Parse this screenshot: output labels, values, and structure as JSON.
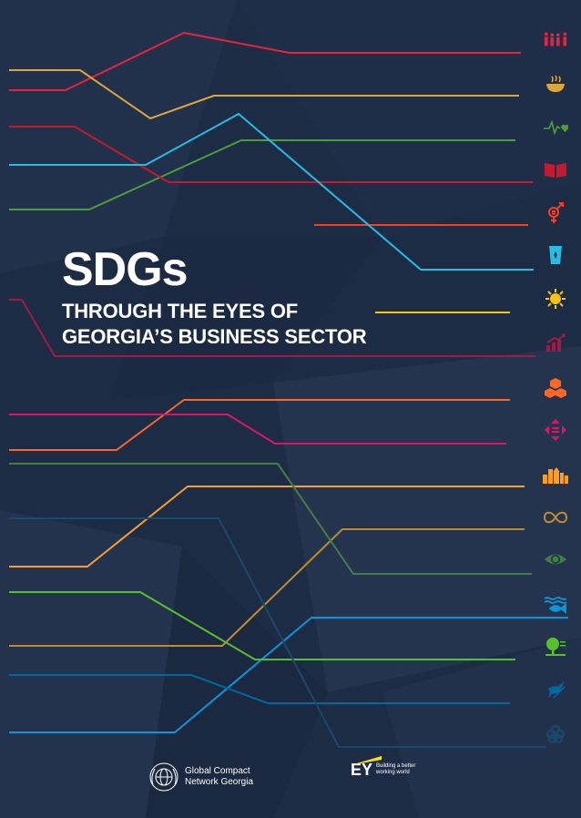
{
  "title": "SDGs",
  "subtitle_line1": "THROUGH THE EYES OF",
  "subtitle_line2": "GEORGIA’S BUSINESS SECTOR",
  "logos": {
    "global_compact_line1": "Global Compact",
    "global_compact_line2": "Network Georgia",
    "ey_mark": "EY",
    "ey_tagline_line1": "Building a better",
    "ey_tagline_line2": "working world"
  },
  "sdg_icons": [
    {
      "name": "no-poverty-icon",
      "color": "#e5243b"
    },
    {
      "name": "zero-hunger-icon",
      "color": "#dda63a"
    },
    {
      "name": "good-health-icon",
      "color": "#4c9f38"
    },
    {
      "name": "quality-education-icon",
      "color": "#c5192d"
    },
    {
      "name": "gender-equality-icon",
      "color": "#ff3a21"
    },
    {
      "name": "clean-water-icon",
      "color": "#26bde2"
    },
    {
      "name": "clean-energy-icon",
      "color": "#fcc30b"
    },
    {
      "name": "decent-work-icon",
      "color": "#a21942"
    },
    {
      "name": "industry-innovation-icon",
      "color": "#fd6925"
    },
    {
      "name": "reduced-inequalities-icon",
      "color": "#dd1367"
    },
    {
      "name": "sustainable-cities-icon",
      "color": "#fd9d24"
    },
    {
      "name": "responsible-consumption-icon",
      "color": "#bf8b2e"
    },
    {
      "name": "climate-action-icon",
      "color": "#3f7e44"
    },
    {
      "name": "life-below-water-icon",
      "color": "#0a97d9"
    },
    {
      "name": "life-on-land-icon",
      "color": "#56c02b"
    },
    {
      "name": "peace-justice-icon",
      "color": "#00689d"
    },
    {
      "name": "partnerships-icon",
      "color": "#19486a"
    }
  ]
}
